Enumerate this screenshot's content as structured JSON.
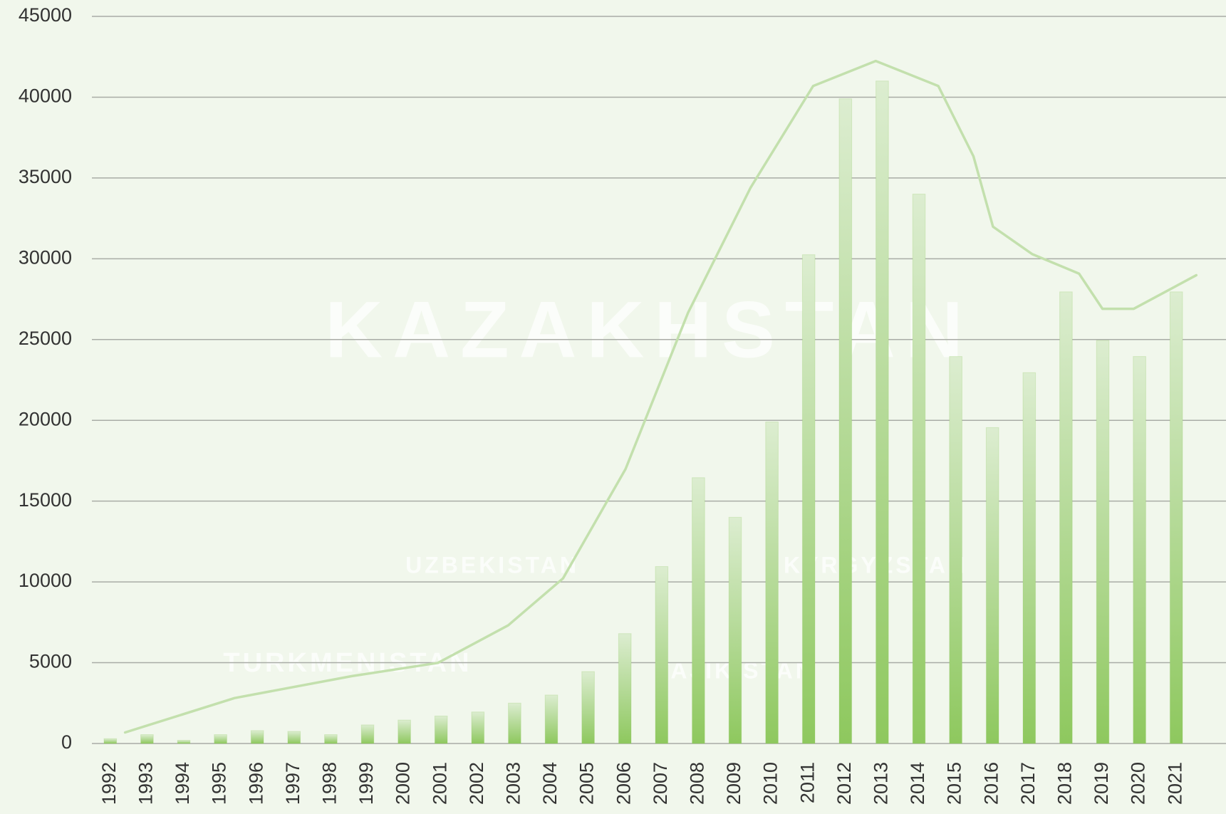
{
  "chart_data": {
    "type": "bar",
    "categories": [
      "1992",
      "1993",
      "1994",
      "1995",
      "1996",
      "1997",
      "1998",
      "1999",
      "2000",
      "2001",
      "2002",
      "2003",
      "2004",
      "2005",
      "2006",
      "2007",
      "2008",
      "2009",
      "2010",
      "2011",
      "2012",
      "2013",
      "2014",
      "2015",
      "2016",
      "2017",
      "2018",
      "2019",
      "2020",
      "2021"
    ],
    "values": [
      300,
      550,
      200,
      550,
      800,
      750,
      550,
      1150,
      1450,
      1700,
      1950,
      2500,
      3000,
      4450,
      6800,
      10950,
      16450,
      14000,
      19900,
      30250,
      39900,
      41000,
      34000,
      23950,
      19550,
      22950,
      27950,
      24950,
      23950,
      27950
    ],
    "color": "#8ec85e",
    "ylim": [
      0,
      45000
    ],
    "yticks": [
      0,
      5000,
      10000,
      15000,
      20000,
      25000,
      30000,
      35000,
      40000,
      45000
    ],
    "grid": true,
    "background_labels": [
      "KAZAKHSTAN",
      "UZBEKISTAN",
      "KYRGYZSTAN",
      "TURKMENISTAN",
      "TAJIKISTAN"
    ]
  }
}
